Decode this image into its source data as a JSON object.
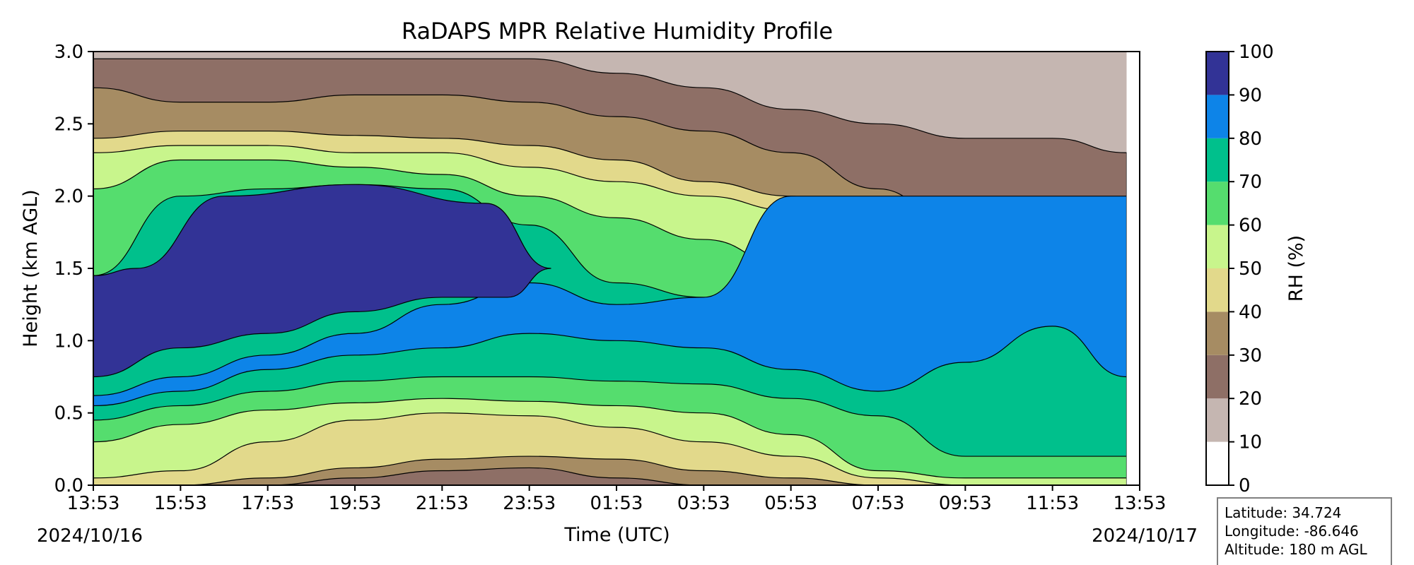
{
  "chart_data": {
    "type": "contour",
    "title": "RaDAPS MPR Relative Humidity Profile",
    "xlabel": "Time (UTC)",
    "ylabel": "Height (km AGL)",
    "xlim": [
      "2024-10-16T13:53Z",
      "2024-10-17T13:53Z"
    ],
    "ylim": [
      0.0,
      3.0
    ],
    "x_ticks": [
      "13:53",
      "15:53",
      "17:53",
      "19:53",
      "21:53",
      "23:53",
      "01:53",
      "03:53",
      "05:53",
      "07:53",
      "09:53",
      "11:53",
      "13:53"
    ],
    "y_ticks": [
      "0.0",
      "0.5",
      "1.0",
      "1.5",
      "2.0",
      "2.5",
      "3.0"
    ],
    "date_start": "2024/10/16",
    "date_end": "2024/10/17",
    "x_hours": [
      0,
      2,
      4,
      6,
      8,
      10,
      12,
      14,
      16,
      18,
      20,
      22,
      23.7
    ],
    "rh_levels": [
      0,
      10,
      20,
      30,
      40,
      50,
      60,
      70,
      80,
      90,
      100
    ],
    "contours": [
      {
        "level": 80,
        "heights": [
          0.62,
          0.75,
          0.9,
          1.05,
          1.25,
          1.4,
          1.25,
          1.3,
          2.0,
          2.0,
          2.0,
          2.0,
          2.0
        ]
      },
      {
        "level": 70,
        "heights": [
          0.55,
          0.65,
          0.8,
          0.9,
          0.95,
          1.05,
          1.0,
          0.95,
          0.8,
          0.65,
          0.85,
          1.1,
          0.75
        ]
      },
      {
        "level": 60,
        "heights": [
          0.45,
          0.55,
          0.65,
          0.72,
          0.75,
          0.75,
          0.72,
          0.7,
          0.6,
          0.48,
          0.2,
          0.2,
          0.2
        ]
      },
      {
        "level": 50,
        "heights": [
          0.3,
          0.42,
          0.52,
          0.57,
          0.6,
          0.58,
          0.55,
          0.5,
          0.35,
          0.1,
          0.05,
          0.05,
          0.05
        ]
      },
      {
        "level": 40,
        "heights": [
          0.05,
          0.1,
          0.3,
          0.45,
          0.5,
          0.48,
          0.4,
          0.3,
          0.2,
          0.05,
          0.0,
          0.0,
          0.0
        ]
      },
      {
        "level": 30,
        "heights": [
          0.0,
          0.0,
          0.05,
          0.12,
          0.18,
          0.2,
          0.18,
          0.1,
          0.05,
          0.0,
          0.0,
          0.0,
          0.0
        ]
      },
      {
        "level": 20,
        "heights": [
          0.0,
          0.0,
          0.0,
          0.05,
          0.1,
          0.12,
          0.05,
          0.0,
          0.0,
          0.0,
          0.0,
          0.0,
          0.0
        ]
      }
    ],
    "upper_layers": [
      {
        "name": "moist_core_top",
        "heights": [
          1.45,
          2.0,
          2.05,
          2.08,
          2.05,
          1.8,
          1.4,
          1.3,
          1.2,
          1.1,
          1.1,
          1.1,
          1.1
        ]
      },
      {
        "name": "rh60_top",
        "heights": [
          2.05,
          2.25,
          2.25,
          2.2,
          2.15,
          2.0,
          1.85,
          1.7,
          1.5,
          1.3,
          1.2,
          1.2,
          1.2
        ]
      },
      {
        "name": "rh50_top",
        "heights": [
          2.3,
          2.35,
          2.35,
          2.3,
          2.3,
          2.2,
          2.1,
          2.0,
          1.9,
          1.55,
          1.35,
          1.35,
          1.35
        ]
      },
      {
        "name": "rh40_top",
        "heights": [
          2.4,
          2.45,
          2.45,
          2.42,
          2.4,
          2.35,
          2.25,
          2.1,
          2.0,
          1.7,
          1.5,
          1.45,
          1.4
        ]
      },
      {
        "name": "rh30_top",
        "heights": [
          2.75,
          2.65,
          2.65,
          2.7,
          2.7,
          2.65,
          2.55,
          2.45,
          2.3,
          2.05,
          1.7,
          1.65,
          1.7
        ]
      },
      {
        "name": "rh20_top",
        "heights": [
          2.95,
          2.95,
          2.95,
          2.95,
          2.95,
          2.95,
          2.85,
          2.75,
          2.6,
          2.5,
          2.4,
          2.4,
          2.3
        ]
      }
    ],
    "colorbar": {
      "label": "RH (%)",
      "ticks": [
        "0",
        "10",
        "20",
        "30",
        "40",
        "50",
        "60",
        "70",
        "80",
        "90",
        "100"
      ],
      "colors": [
        "#ffffff",
        "#c5b6b1",
        "#8e6f66",
        "#a68c63",
        "#e2d98b",
        "#c8f58c",
        "#55dd6e",
        "#00c08c",
        "#0d84e8",
        "#323396"
      ]
    }
  },
  "info_box": {
    "latitude": "Latitude: 34.724",
    "longitude": "Longitude: -86.646",
    "altitude": "Altitude: 180 m AGL"
  }
}
